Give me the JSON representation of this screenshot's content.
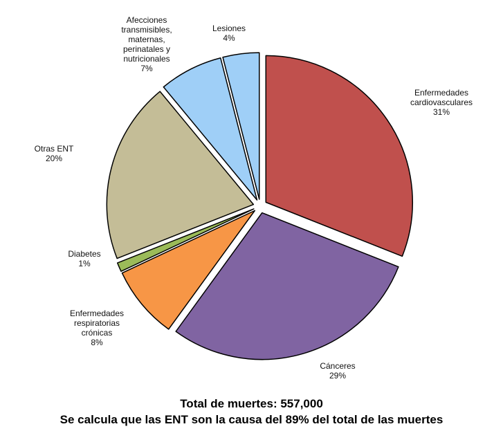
{
  "chart_data": {
    "type": "pie",
    "title": "Total de muertes: 557,000",
    "subtitle": "Se calcula que las ENT son la causa del 89% del total de las muertes",
    "categories": [
      "Enfermedades cardiovasculares",
      "Cánceres",
      "Enfermedades respiratorias crónicas",
      "Diabetes",
      "Otras ENT",
      "Afecciones transmisibles, maternas, perinatales y nutricionales",
      "Lesiones"
    ],
    "values": [
      31,
      29,
      8,
      1,
      20,
      7,
      4
    ],
    "value_labels": [
      "31%",
      "29%",
      "8%",
      "1%",
      "20%",
      "7%",
      "4%"
    ],
    "colors": [
      "#c0504d",
      "#8064a2",
      "#f79646",
      "#9bbb59",
      "#c4bd97",
      "#9fcff7",
      "#9fcff7"
    ]
  }
}
